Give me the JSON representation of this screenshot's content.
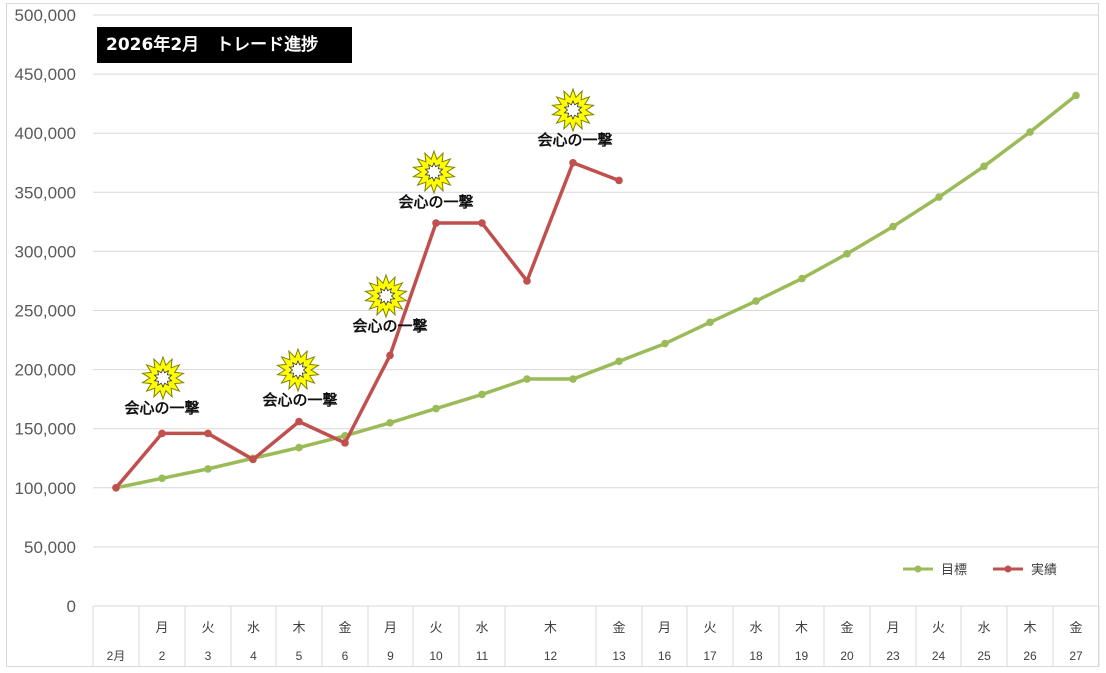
{
  "title": "2026年2月　トレード進捗",
  "chart_data": {
    "type": "line",
    "title": "2026年2月　トレード進捗",
    "ylim": [
      0,
      500000
    ],
    "y_ticks": [
      "500,000",
      "450,000",
      "400,000",
      "350,000",
      "300,000",
      "250,000",
      "200,000",
      "150,000",
      "100,000",
      "50,000",
      "0"
    ],
    "y_tick_values": [
      500000,
      450000,
      400000,
      350000,
      300000,
      250000,
      200000,
      150000,
      100000,
      50000,
      0
    ],
    "grid": true,
    "legend_position": "bottom-right",
    "categories": [
      {
        "weekday": "",
        "day": "2月"
      },
      {
        "weekday": "月",
        "day": "2"
      },
      {
        "weekday": "火",
        "day": "3"
      },
      {
        "weekday": "水",
        "day": "4"
      },
      {
        "weekday": "木",
        "day": "5"
      },
      {
        "weekday": "金",
        "day": "6"
      },
      {
        "weekday": "月",
        "day": "9"
      },
      {
        "weekday": "火",
        "day": "10"
      },
      {
        "weekday": "水",
        "day": "11"
      },
      {
        "weekday": "木",
        "day": "12"
      },
      {
        "weekday": "",
        "day": ""
      },
      {
        "weekday": "金",
        "day": "13"
      },
      {
        "weekday": "月",
        "day": "16"
      },
      {
        "weekday": "火",
        "day": "17"
      },
      {
        "weekday": "水",
        "day": "18"
      },
      {
        "weekday": "木",
        "day": "19"
      },
      {
        "weekday": "金",
        "day": "20"
      },
      {
        "weekday": "月",
        "day": "23"
      },
      {
        "weekday": "火",
        "day": "24"
      },
      {
        "weekday": "水",
        "day": "25"
      },
      {
        "weekday": "木",
        "day": "26"
      },
      {
        "weekday": "金",
        "day": "27"
      }
    ],
    "series": [
      {
        "name": "目標",
        "color": "#9bbb59",
        "values": [
          100000,
          108000,
          116000,
          125000,
          134000,
          144000,
          155000,
          167000,
          179000,
          192000,
          192000,
          207000,
          222000,
          240000,
          258000,
          277000,
          298000,
          321000,
          346000,
          372000,
          401000,
          432000
        ]
      },
      {
        "name": "実績",
        "color": "#c0504d",
        "values": [
          100000,
          146000,
          146000,
          124000,
          156000,
          138000,
          212000,
          324000,
          324000,
          275000,
          375000,
          360000,
          null,
          null,
          null,
          null,
          null,
          null,
          null,
          null,
          null,
          null
        ]
      }
    ],
    "annotations": [
      {
        "text": "会心の一撃",
        "point_index": 1,
        "icon": "starburst-icon"
      },
      {
        "text": "会心の一撃",
        "point_index": 4,
        "icon": "starburst-icon"
      },
      {
        "text": "会心の一撃",
        "point_index": 6,
        "icon": "starburst-icon"
      },
      {
        "text": "会心の一撃",
        "point_index": 7,
        "icon": "starburst-icon"
      },
      {
        "text": "会心の一撃",
        "point_index": 10,
        "icon": "starburst-icon"
      }
    ]
  }
}
